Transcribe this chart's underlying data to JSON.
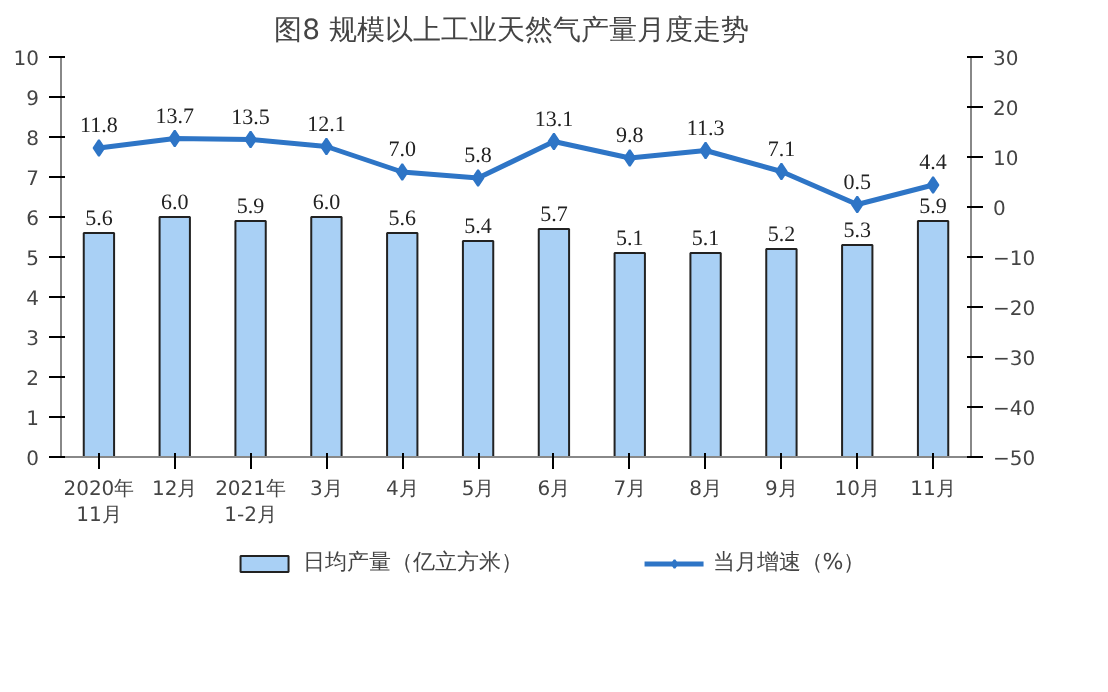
{
  "chart_data": {
    "type": "bar",
    "title": "图8  规模以上工业天然气产量月度走势",
    "categories": [
      "2020年\n11月",
      "12月",
      "2021年\n1-2月",
      "3月",
      "4月",
      "5月",
      "6月",
      "7月",
      "8月",
      "9月",
      "10月",
      "11月"
    ],
    "series": [
      {
        "name": "日均产量（亿立方米）",
        "color": "#a9d0f5",
        "values": [
          5.6,
          6.0,
          5.9,
          6.0,
          5.6,
          5.4,
          5.7,
          5.1,
          5.1,
          5.2,
          5.3,
          5.9
        ],
        "value_labels": [
          "5.6",
          "6.0",
          "5.9",
          "6.0",
          "5.6",
          "5.4",
          "5.7",
          "5.1",
          "5.1",
          "5.2",
          "5.3",
          "5.9"
        ]
      },
      {
        "name": "当月增速（%）",
        "type": "line",
        "axis": "y2",
        "color": "#2e75c6",
        "marker": "diamond",
        "values": [
          11.8,
          13.7,
          13.5,
          12.1,
          7.0,
          5.8,
          13.1,
          9.8,
          11.3,
          7.1,
          0.5,
          4.4
        ],
        "value_labels": [
          "11.8",
          "13.7",
          "13.5",
          "12.1",
          "7.0",
          "5.8",
          "13.1",
          "9.8",
          "11.3",
          "7.1",
          "0.5",
          "4.4"
        ]
      }
    ],
    "ylim": [
      0,
      10
    ],
    "yticks": [
      0,
      1,
      2,
      3,
      4,
      5,
      6,
      7,
      8,
      9,
      10
    ],
    "y2lim": [
      -50,
      30
    ],
    "y2ticks": [
      -50,
      -40,
      -30,
      -20,
      -10,
      0,
      10,
      20,
      30
    ],
    "grid": false,
    "legend": "bottom"
  }
}
